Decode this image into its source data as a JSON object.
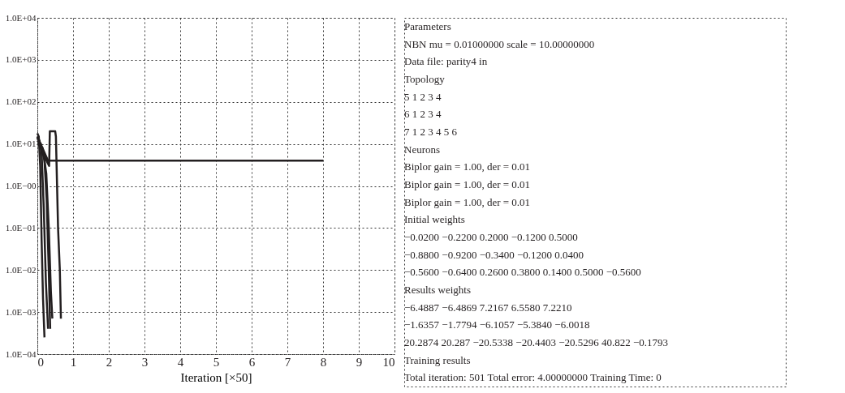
{
  "chart_data": {
    "type": "line",
    "xlabel": "Iteration [×50]",
    "xlim": [
      0,
      10
    ],
    "xticks": [
      0,
      1,
      2,
      3,
      4,
      5,
      6,
      7,
      8,
      9,
      10
    ],
    "ylim": [
      0.0001,
      10000
    ],
    "log": true,
    "yticks": [
      {
        "value": 0.0001,
        "label": "1.0E−04"
      },
      {
        "value": 0.001,
        "label": "1.0E−03"
      },
      {
        "value": 0.01,
        "label": "1.0E−02"
      },
      {
        "value": 0.1,
        "label": "1.0E−01"
      },
      {
        "value": 1,
        "label": "1.0E−00"
      },
      {
        "value": 10,
        "label": "1.0E+01"
      },
      {
        "value": 100,
        "label": "1.0E+02"
      },
      {
        "value": 1000,
        "label": "1.0E+03"
      },
      {
        "value": 10000,
        "label": "1.0E+04"
      }
    ],
    "grid": true,
    "legend": false,
    "marker": "none",
    "line_style": "solid",
    "series": [
      {
        "color": "#231f20",
        "x": [
          0,
          0.3,
          8
        ],
        "values": [
          15,
          4,
          4
        ]
      },
      {
        "color": "#231f20",
        "x": [
          0,
          0.04,
          0.08,
          0.12,
          0.16,
          0.2
        ],
        "values": [
          18,
          15,
          3,
          0.05,
          0.002,
          0.00025
        ]
      },
      {
        "color": "#231f20",
        "x": [
          0,
          0.06,
          0.12,
          0.18,
          0.24,
          0.3
        ],
        "values": [
          15,
          12,
          6,
          0.3,
          0.005,
          0.0004
        ]
      },
      {
        "color": "#231f20",
        "x": [
          0,
          0.1,
          0.2,
          0.26,
          0.32,
          0.36
        ],
        "values": [
          12,
          10,
          4,
          0.5,
          0.01,
          0.0004
        ]
      },
      {
        "color": "#231f20",
        "x": [
          0,
          0.15,
          0.25,
          0.32,
          0.38,
          0.42
        ],
        "values": [
          10,
          8,
          2,
          0.1,
          0.003,
          0.0007
        ]
      },
      {
        "color": "#231f20",
        "x": [
          0,
          0.2,
          0.33,
          0.35,
          0.5,
          0.52,
          0.58,
          0.63,
          0.66
        ],
        "values": [
          14,
          5,
          3,
          20,
          20,
          15,
          0.1,
          0.01,
          0.0007
        ]
      }
    ],
    "annotations": [
      "Parameters",
      "NBN mu = 0.01000000 scale = 10.00000000",
      "Data file: parity4 in",
      "Topology",
      "5  1  2  3  4",
      "6  1  2  3  4",
      "7  1  2  3  4  5  6",
      "Neurons",
      "Biplor gain = 1.00, der = 0.01",
      "Biplor gain = 1.00, der = 0.01",
      "Biplor gain = 1.00, der = 0.01",
      "Initial weights",
      "−0.0200  −0.2200   0.2000  −0.1200  0.5000",
      "−0.8800  −0.9200  −0.3400  −0.1200  0.0400",
      "−0.5600  −0.6400   0.2600   0.3800  0.1400  0.5000  −0.5600",
      "Results weights",
      "−6.4887  −6.4869   7.2167   6.5580   7.2210",
      "−1.6357  −1.7794  −6.1057  −5.3840  −6.0018",
      "20.2874  20.287  −20.5338  −20.4403  −20.5296  40.822  −0.1793",
      "Training results",
      "Total iteration: 501   Total error: 4.00000000   Training Time: 0"
    ]
  }
}
